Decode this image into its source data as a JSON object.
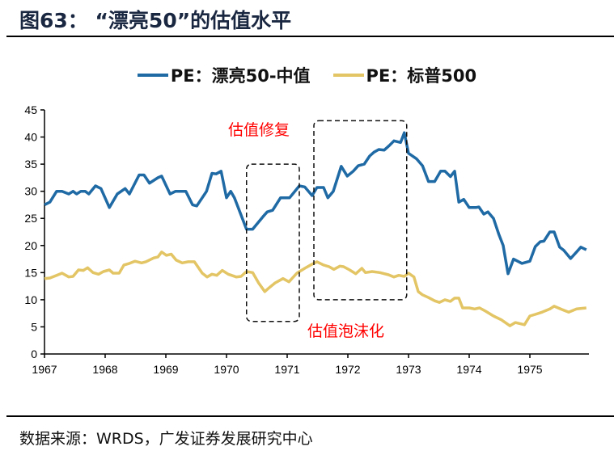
{
  "header": {
    "title": "图63： “漂亮50”的估值水平"
  },
  "footer": {
    "source": "数据来源：WRDS，广发证券发展研究中心"
  },
  "chart_data": {
    "type": "line",
    "title": "“漂亮50”的估值水平",
    "xlabel": "",
    "ylabel": "",
    "xlim": [
      1967,
      1975.97
    ],
    "ylim": [
      0,
      45
    ],
    "yticks": [
      "0",
      "5",
      "10",
      "15",
      "20",
      "25",
      "30",
      "35",
      "40",
      "45"
    ],
    "xticks": [
      "1967",
      "1968",
      "1969",
      "1970",
      "1971",
      "1972",
      "1973",
      "1974",
      "1975"
    ],
    "legend_position": "top-center",
    "series": [
      {
        "name": "PE：漂亮50-中值",
        "color": "#1f6aa5",
        "x": [
          1967,
          1967.09,
          1967.2,
          1967.29,
          1967.4,
          1967.47,
          1967.53,
          1967.6,
          1967.67,
          1967.73,
          1967.84,
          1967.93,
          1968.07,
          1968.2,
          1968.33,
          1968.4,
          1968.56,
          1968.64,
          1968.73,
          1968.87,
          1968.93,
          1969.07,
          1969.16,
          1969.27,
          1969.33,
          1969.44,
          1969.51,
          1969.6,
          1969.67,
          1969.76,
          1969.83,
          1969.91,
          1970,
          1970.07,
          1970.13,
          1970.33,
          1970.43,
          1970.6,
          1970.67,
          1970.76,
          1970.89,
          1971.04,
          1971.2,
          1971.29,
          1971.41,
          1971.49,
          1971.6,
          1971.67,
          1971.76,
          1971.89,
          1971.99,
          1972.09,
          1972.17,
          1972.27,
          1972.36,
          1972.43,
          1972.51,
          1972.6,
          1972.68,
          1972.76,
          1972.87,
          1972.93,
          1973,
          1973.13,
          1973.23,
          1973.33,
          1973.43,
          1973.53,
          1973.6,
          1973.69,
          1973.76,
          1973.83,
          1973.91,
          1974,
          1974.11,
          1974.16,
          1974.24,
          1974.31,
          1974.4,
          1974.49,
          1974.56,
          1974.64,
          1974.73,
          1974.87,
          1975,
          1975.09,
          1975.17,
          1975.23,
          1975.33,
          1975.4,
          1975.49,
          1975.56,
          1975.67,
          1975.77,
          1975.84,
          1975.93
        ],
        "y": [
          27.5,
          28,
          30,
          30,
          29.5,
          30,
          29.5,
          30,
          30,
          29.5,
          31,
          30.5,
          27,
          29.5,
          30.5,
          29.5,
          33,
          33,
          31.5,
          32.5,
          32.8,
          29.5,
          30,
          30,
          30,
          27.5,
          27.3,
          28.8,
          30,
          33.3,
          33.2,
          33.7,
          28.8,
          30,
          28.8,
          23,
          23,
          25.3,
          26.2,
          26.5,
          28.8,
          28.8,
          31,
          30.8,
          29.2,
          30.7,
          30.7,
          28.8,
          30,
          34.6,
          32.8,
          33.7,
          34.7,
          35,
          36.5,
          37.2,
          37.7,
          37.6,
          38.4,
          39.3,
          39,
          40.8,
          37,
          36,
          34.7,
          31.8,
          31.8,
          33.7,
          33.7,
          32.7,
          33.7,
          28,
          28.5,
          27,
          27,
          27.1,
          25.8,
          26.2,
          25,
          22,
          20,
          14.8,
          17.5,
          16.7,
          17.1,
          19.8,
          20.7,
          20.8,
          22.5,
          22.5,
          19.7,
          19.1,
          17.6,
          18.8,
          19.7,
          19.2
        ]
      },
      {
        "name": "PE：标普500",
        "color": "#e3c565",
        "x": [
          1967,
          1967.09,
          1967.2,
          1967.29,
          1967.4,
          1967.47,
          1967.56,
          1967.64,
          1967.71,
          1967.8,
          1967.89,
          1967.97,
          1968.07,
          1968.13,
          1968.23,
          1968.31,
          1968.4,
          1968.49,
          1968.6,
          1968.67,
          1968.8,
          1968.87,
          1968.93,
          1969.01,
          1969.09,
          1969.17,
          1969.27,
          1969.37,
          1969.47,
          1969.6,
          1969.68,
          1969.76,
          1969.84,
          1969.93,
          1970.03,
          1970.16,
          1970.24,
          1970.33,
          1970.43,
          1970.53,
          1970.63,
          1970.69,
          1970.8,
          1970.93,
          1971.03,
          1971.16,
          1971.29,
          1971.4,
          1971.49,
          1971.6,
          1971.69,
          1971.77,
          1971.87,
          1971.93,
          1972.03,
          1972.13,
          1972.23,
          1972.29,
          1972.4,
          1972.53,
          1972.67,
          1972.76,
          1972.84,
          1972.93,
          1973,
          1973.09,
          1973.16,
          1973.23,
          1973.33,
          1973.43,
          1973.51,
          1973.6,
          1973.69,
          1973.76,
          1973.83,
          1973.89,
          1974,
          1974.09,
          1974.17,
          1974.27,
          1974.4,
          1974.53,
          1974.67,
          1974.76,
          1974.91,
          1975,
          1975.09,
          1975.2,
          1975.33,
          1975.4,
          1975.53,
          1975.64,
          1975.77,
          1975.93
        ],
        "y": [
          13.9,
          14,
          14.5,
          14.9,
          14.2,
          14.3,
          15.5,
          15.4,
          15.9,
          15,
          14.7,
          15.2,
          15.5,
          14.9,
          14.9,
          16.4,
          16.7,
          17.1,
          16.8,
          17,
          17.7,
          17.9,
          18.8,
          18.2,
          18.4,
          17.3,
          16.8,
          17,
          17,
          14.9,
          14.2,
          14.7,
          14.5,
          15.4,
          14.7,
          14.2,
          14.3,
          15.2,
          15,
          13.1,
          11.5,
          12.1,
          13.1,
          13.9,
          13.3,
          14.9,
          15.8,
          16.5,
          17,
          16.4,
          16.1,
          15.6,
          16.2,
          16.1,
          15.5,
          14.8,
          15.8,
          15,
          15.2,
          15,
          14.6,
          14.2,
          14.5,
          14.3,
          14.9,
          14.2,
          11.5,
          10.9,
          10.4,
          9.8,
          9.5,
          10,
          9.7,
          10.3,
          10.3,
          8.5,
          8.5,
          8.3,
          8.5,
          7.9,
          7,
          6.3,
          5.2,
          5.8,
          5.4,
          7,
          7.3,
          7.7,
          8.3,
          8.8,
          8.2,
          7.7,
          8.3,
          8.5
        ]
      }
    ],
    "annotations": [
      {
        "text": "估值修复",
        "box_x": [
          1970.33,
          1971.2
        ],
        "box_y": [
          6,
          35
        ]
      },
      {
        "text": "估值泡沫化",
        "box_x": [
          1971.44,
          1972.97
        ],
        "box_y": [
          10,
          43
        ]
      }
    ]
  }
}
